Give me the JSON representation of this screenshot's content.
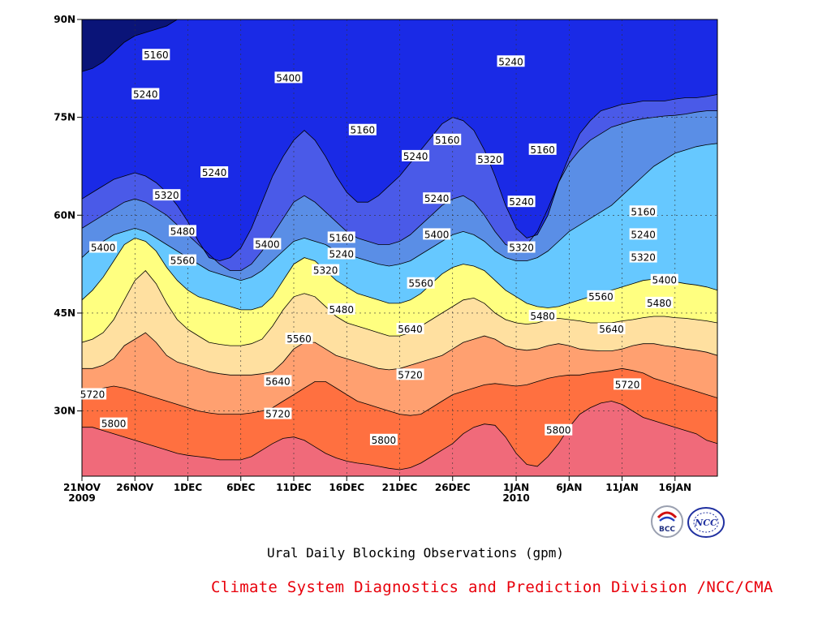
{
  "chart_data": {
    "type": "heatmap",
    "subtype": "filled-contour (time-latitude Hovmoller)",
    "title": "Ural Daily Blocking Observations (gpm)",
    "credit": "Climate System Diagnostics and Prediction Division /NCC/CMA",
    "x_ticks": [
      {
        "label": "21NOV",
        "sub": "2009",
        "day": 0
      },
      {
        "label": "26NOV",
        "sub": "",
        "day": 5
      },
      {
        "label": "1DEC",
        "sub": "",
        "day": 10
      },
      {
        "label": "6DEC",
        "sub": "",
        "day": 15
      },
      {
        "label": "11DEC",
        "sub": "",
        "day": 20
      },
      {
        "label": "16DEC",
        "sub": "",
        "day": 25
      },
      {
        "label": "21DEC",
        "sub": "",
        "day": 30
      },
      {
        "label": "26DEC",
        "sub": "",
        "day": 35
      },
      {
        "label": "1JAN",
        "sub": "2010",
        "day": 41
      },
      {
        "label": "6JAN",
        "sub": "",
        "day": 46
      },
      {
        "label": "11JAN",
        "sub": "",
        "day": 51
      },
      {
        "label": "16JAN",
        "sub": "",
        "day": 56
      }
    ],
    "x_range_days": [
      0,
      60
    ],
    "y_ticks": [
      {
        "label": "30N",
        "lat": 30
      },
      {
        "label": "45N",
        "lat": 45
      },
      {
        "label": "60N",
        "lat": 60
      },
      {
        "label": "75N",
        "lat": 75
      },
      {
        "label": "90N",
        "lat": 90
      }
    ],
    "y_range": [
      20,
      90
    ],
    "grid": true,
    "contour_levels": [
      5160,
      5240,
      5320,
      5400,
      5480,
      5560,
      5640,
      5720,
      5800
    ],
    "fill_colors": [
      "#0a1478",
      "#1a2ae6",
      "#4a5ae8",
      "#5a8ee6",
      "#66c8ff",
      "#ffff80",
      "#ffe0a0",
      "#ffa070",
      "#ff7040",
      "#f06a7a"
    ],
    "level_bounds": [
      {
        "level": 5800,
        "lat": [
          27.5,
          27.5,
          27.0,
          26.5,
          26.0,
          25.5,
          25.0,
          24.5,
          24.0,
          23.5,
          23.2,
          23.0,
          22.8,
          22.5,
          22.5,
          22.5,
          23.0,
          24.0,
          25.0,
          25.8,
          26.0,
          25.5,
          24.5,
          23.5,
          22.8,
          22.3,
          22.0,
          21.8,
          21.5,
          21.2,
          21.0,
          21.3,
          22.0,
          23.0,
          24.0,
          25.0,
          26.5,
          27.5,
          28.0,
          27.8,
          26.0,
          23.5,
          21.8,
          21.5,
          23.0,
          25.0,
          27.5,
          29.5,
          30.5,
          31.2,
          31.5,
          31.0,
          30.0,
          29.0,
          28.5,
          28.0,
          27.5,
          27.0,
          26.5,
          25.5,
          25.0
        ]
      },
      {
        "level": 5720,
        "lat": [
          32.5,
          33.0,
          33.5,
          33.8,
          33.5,
          33.0,
          32.5,
          32.0,
          31.5,
          31.0,
          30.5,
          30.0,
          29.7,
          29.5,
          29.5,
          29.5,
          29.7,
          30.0,
          30.5,
          31.5,
          32.5,
          33.5,
          34.5,
          34.5,
          33.5,
          32.5,
          31.5,
          31.0,
          30.5,
          30.0,
          29.5,
          29.3,
          29.5,
          30.5,
          31.5,
          32.5,
          33.0,
          33.5,
          34.0,
          34.2,
          34.0,
          33.8,
          34.0,
          34.5,
          35.0,
          35.3,
          35.5,
          35.5,
          35.8,
          36.0,
          36.2,
          36.5,
          36.2,
          35.8,
          35.0,
          34.5,
          34.0,
          33.5,
          33.0,
          32.5,
          32.0
        ]
      },
      {
        "level": 5640,
        "lat": [
          36.5,
          36.5,
          37.0,
          38.0,
          40.0,
          41.0,
          42.0,
          40.5,
          38.5,
          37.5,
          37.0,
          36.5,
          36.0,
          35.7,
          35.5,
          35.5,
          35.5,
          35.7,
          36.0,
          37.5,
          39.5,
          40.5,
          40.5,
          39.5,
          38.5,
          38.0,
          37.5,
          37.0,
          36.5,
          36.3,
          36.5,
          37.0,
          37.5,
          38.0,
          38.5,
          39.5,
          40.5,
          41.0,
          41.5,
          41.0,
          40.0,
          39.5,
          39.3,
          39.5,
          40.0,
          40.3,
          40.0,
          39.5,
          39.3,
          39.2,
          39.2,
          39.5,
          40.0,
          40.3,
          40.3,
          40.0,
          39.8,
          39.5,
          39.3,
          39.0,
          38.5
        ]
      },
      {
        "level": 5560,
        "lat": [
          40.5,
          41.0,
          42.0,
          44.0,
          47.0,
          50.0,
          51.5,
          49.5,
          46.5,
          44.0,
          42.5,
          41.5,
          40.5,
          40.2,
          40.0,
          40.0,
          40.3,
          41.0,
          43.0,
          45.5,
          47.5,
          48.0,
          47.5,
          46.0,
          44.5,
          43.5,
          43.0,
          42.5,
          42.0,
          41.5,
          41.5,
          42.0,
          43.0,
          44.0,
          45.0,
          46.0,
          47.0,
          47.3,
          46.5,
          45.0,
          44.0,
          43.5,
          43.3,
          43.5,
          44.0,
          44.2,
          44.0,
          43.8,
          43.5,
          43.5,
          43.5,
          43.8,
          44.0,
          44.3,
          44.5,
          44.5,
          44.3,
          44.2,
          44.0,
          43.8,
          43.5
        ]
      },
      {
        "level": 5480,
        "lat": [
          47.0,
          48.5,
          50.5,
          53.0,
          55.5,
          56.5,
          56.0,
          54.5,
          52.0,
          50.0,
          48.5,
          47.5,
          47.0,
          46.5,
          46.0,
          45.5,
          45.5,
          46.0,
          47.5,
          50.0,
          52.5,
          53.5,
          53.0,
          51.5,
          50.0,
          49.0,
          48.0,
          47.5,
          47.0,
          46.5,
          46.5,
          47.0,
          48.0,
          49.5,
          51.0,
          52.0,
          52.5,
          52.2,
          51.5,
          50.0,
          48.5,
          47.5,
          46.5,
          46.0,
          45.8,
          46.0,
          46.5,
          47.0,
          47.5,
          48.0,
          48.5,
          49.0,
          49.5,
          50.0,
          50.2,
          50.0,
          49.8,
          49.5,
          49.3,
          49.0,
          48.5
        ]
      },
      {
        "level": 5400,
        "lat": [
          53.5,
          55.0,
          56.0,
          57.0,
          57.5,
          58.0,
          57.5,
          56.5,
          55.5,
          54.5,
          53.5,
          52.5,
          51.5,
          51.0,
          50.5,
          50.0,
          50.5,
          51.5,
          53.0,
          54.5,
          56.0,
          56.5,
          56.0,
          55.5,
          54.5,
          54.0,
          53.5,
          53.0,
          52.5,
          52.2,
          52.5,
          53.0,
          54.0,
          55.0,
          56.0,
          57.0,
          57.5,
          57.0,
          56.0,
          54.5,
          53.5,
          53.0,
          53.0,
          53.5,
          54.5,
          56.0,
          57.5,
          58.5,
          59.5,
          60.5,
          61.5,
          63.0,
          64.5,
          66.0,
          67.5,
          68.5,
          69.5,
          70.0,
          70.5,
          70.8,
          71.0
        ]
      },
      {
        "level": 5320,
        "lat": [
          58.0,
          59.0,
          60.0,
          61.0,
          62.0,
          62.5,
          62.0,
          61.0,
          60.0,
          58.5,
          57.0,
          55.5,
          54.0,
          52.5,
          51.5,
          51.5,
          52.5,
          54.5,
          57.0,
          59.5,
          62.0,
          63.0,
          62.0,
          60.5,
          59.0,
          57.5,
          56.5,
          56.0,
          55.5,
          55.5,
          56.0,
          57.0,
          58.5,
          60.0,
          61.5,
          62.5,
          63.0,
          62.0,
          60.0,
          57.5,
          55.5,
          55.0,
          55.5,
          57.5,
          61.0,
          65.0,
          68.0,
          70.0,
          71.5,
          72.5,
          73.5,
          74.0,
          74.5,
          74.8,
          75.0,
          75.2,
          75.3,
          75.5,
          75.8,
          76.0,
          76.0
        ]
      },
      {
        "level": 5240,
        "lat": [
          62.5,
          63.5,
          64.5,
          65.5,
          66.0,
          66.5,
          66.0,
          65.0,
          63.5,
          61.5,
          59.0,
          56.0,
          53.5,
          53.0,
          53.5,
          55.0,
          58.0,
          62.0,
          66.0,
          69.0,
          71.5,
          73.0,
          71.5,
          69.0,
          66.0,
          63.5,
          62.0,
          62.0,
          63.0,
          64.5,
          66.0,
          68.0,
          70.0,
          72.0,
          74.0,
          75.0,
          74.5,
          73.0,
          70.0,
          66.0,
          61.5,
          58.0,
          56.5,
          57.0,
          60.0,
          65.0,
          69.0,
          72.5,
          74.5,
          76.0,
          76.5,
          77.0,
          77.2,
          77.5,
          77.5,
          77.5,
          77.8,
          78.0,
          78.0,
          78.2,
          78.5
        ]
      },
      {
        "level": 5160,
        "lat": [
          82.0,
          82.5,
          83.5,
          85.0,
          86.5,
          87.5,
          88.0,
          88.5,
          89.0,
          90,
          90,
          90,
          90,
          90,
          90,
          90,
          90,
          90,
          90,
          90,
          90,
          90,
          90,
          90,
          90,
          90,
          90,
          90,
          90,
          90,
          90,
          90,
          90,
          90,
          90,
          90,
          90,
          90,
          90,
          90,
          90,
          90,
          90,
          90,
          90,
          90,
          90,
          90,
          90,
          90,
          90,
          90,
          90,
          90,
          90,
          90,
          90,
          90,
          90,
          90,
          90
        ]
      }
    ],
    "contour_labels": [
      {
        "text": "5160",
        "day": 7.0,
        "lat": 84.5
      },
      {
        "text": "5240",
        "day": 6.0,
        "lat": 78.5
      },
      {
        "text": "5400",
        "day": 19.5,
        "lat": 81.0
      },
      {
        "text": "5160",
        "day": 26.5,
        "lat": 73.0
      },
      {
        "text": "5240",
        "day": 31.5,
        "lat": 69.0
      },
      {
        "text": "5160",
        "day": 34.5,
        "lat": 71.5
      },
      {
        "text": "5240",
        "day": 40.5,
        "lat": 83.5
      },
      {
        "text": "5320",
        "day": 38.5,
        "lat": 68.5
      },
      {
        "text": "5160",
        "day": 43.5,
        "lat": 70.0
      },
      {
        "text": "5240",
        "day": 12.5,
        "lat": 66.5
      },
      {
        "text": "5320",
        "day": 8.0,
        "lat": 63.0
      },
      {
        "text": "5240",
        "day": 33.5,
        "lat": 62.5
      },
      {
        "text": "5240",
        "day": 41.5,
        "lat": 62.0
      },
      {
        "text": "5160",
        "day": 53.0,
        "lat": 60.5
      },
      {
        "text": "5400",
        "day": 2.0,
        "lat": 55.0
      },
      {
        "text": "5480",
        "day": 9.5,
        "lat": 57.5
      },
      {
        "text": "5400",
        "day": 17.5,
        "lat": 55.5
      },
      {
        "text": "5160",
        "day": 24.5,
        "lat": 56.5
      },
      {
        "text": "5240",
        "day": 24.5,
        "lat": 54.0
      },
      {
        "text": "5320",
        "day": 23.0,
        "lat": 51.5
      },
      {
        "text": "5400",
        "day": 33.5,
        "lat": 57.0
      },
      {
        "text": "5320",
        "day": 41.5,
        "lat": 55.0
      },
      {
        "text": "5240",
        "day": 53.0,
        "lat": 57.0
      },
      {
        "text": "5320",
        "day": 53.0,
        "lat": 53.5
      },
      {
        "text": "5400",
        "day": 55.0,
        "lat": 50.0
      },
      {
        "text": "5560",
        "day": 9.5,
        "lat": 53.0
      },
      {
        "text": "5560",
        "day": 32.0,
        "lat": 49.5
      },
      {
        "text": "5560",
        "day": 49.0,
        "lat": 47.5
      },
      {
        "text": "5480",
        "day": 54.5,
        "lat": 46.5
      },
      {
        "text": "5480",
        "day": 24.5,
        "lat": 45.5
      },
      {
        "text": "5480",
        "day": 43.5,
        "lat": 44.5
      },
      {
        "text": "5560",
        "day": 20.5,
        "lat": 41.0
      },
      {
        "text": "5640",
        "day": 31.0,
        "lat": 42.5
      },
      {
        "text": "5640",
        "day": 50.0,
        "lat": 42.5
      },
      {
        "text": "5640",
        "day": 18.5,
        "lat": 34.5
      },
      {
        "text": "5720",
        "day": 31.0,
        "lat": 35.5
      },
      {
        "text": "5720",
        "day": 51.5,
        "lat": 34.0
      },
      {
        "text": "5720",
        "day": 1.0,
        "lat": 32.5
      },
      {
        "text": "5720",
        "day": 18.5,
        "lat": 29.5
      },
      {
        "text": "5800",
        "day": 3.0,
        "lat": 28.0
      },
      {
        "text": "5800",
        "day": 28.5,
        "lat": 25.5
      },
      {
        "text": "5800",
        "day": 45.0,
        "lat": 27.0
      }
    ]
  },
  "logos": {
    "bcc": {
      "text": "BCC"
    },
    "ncc": {
      "text": "NCC"
    }
  }
}
